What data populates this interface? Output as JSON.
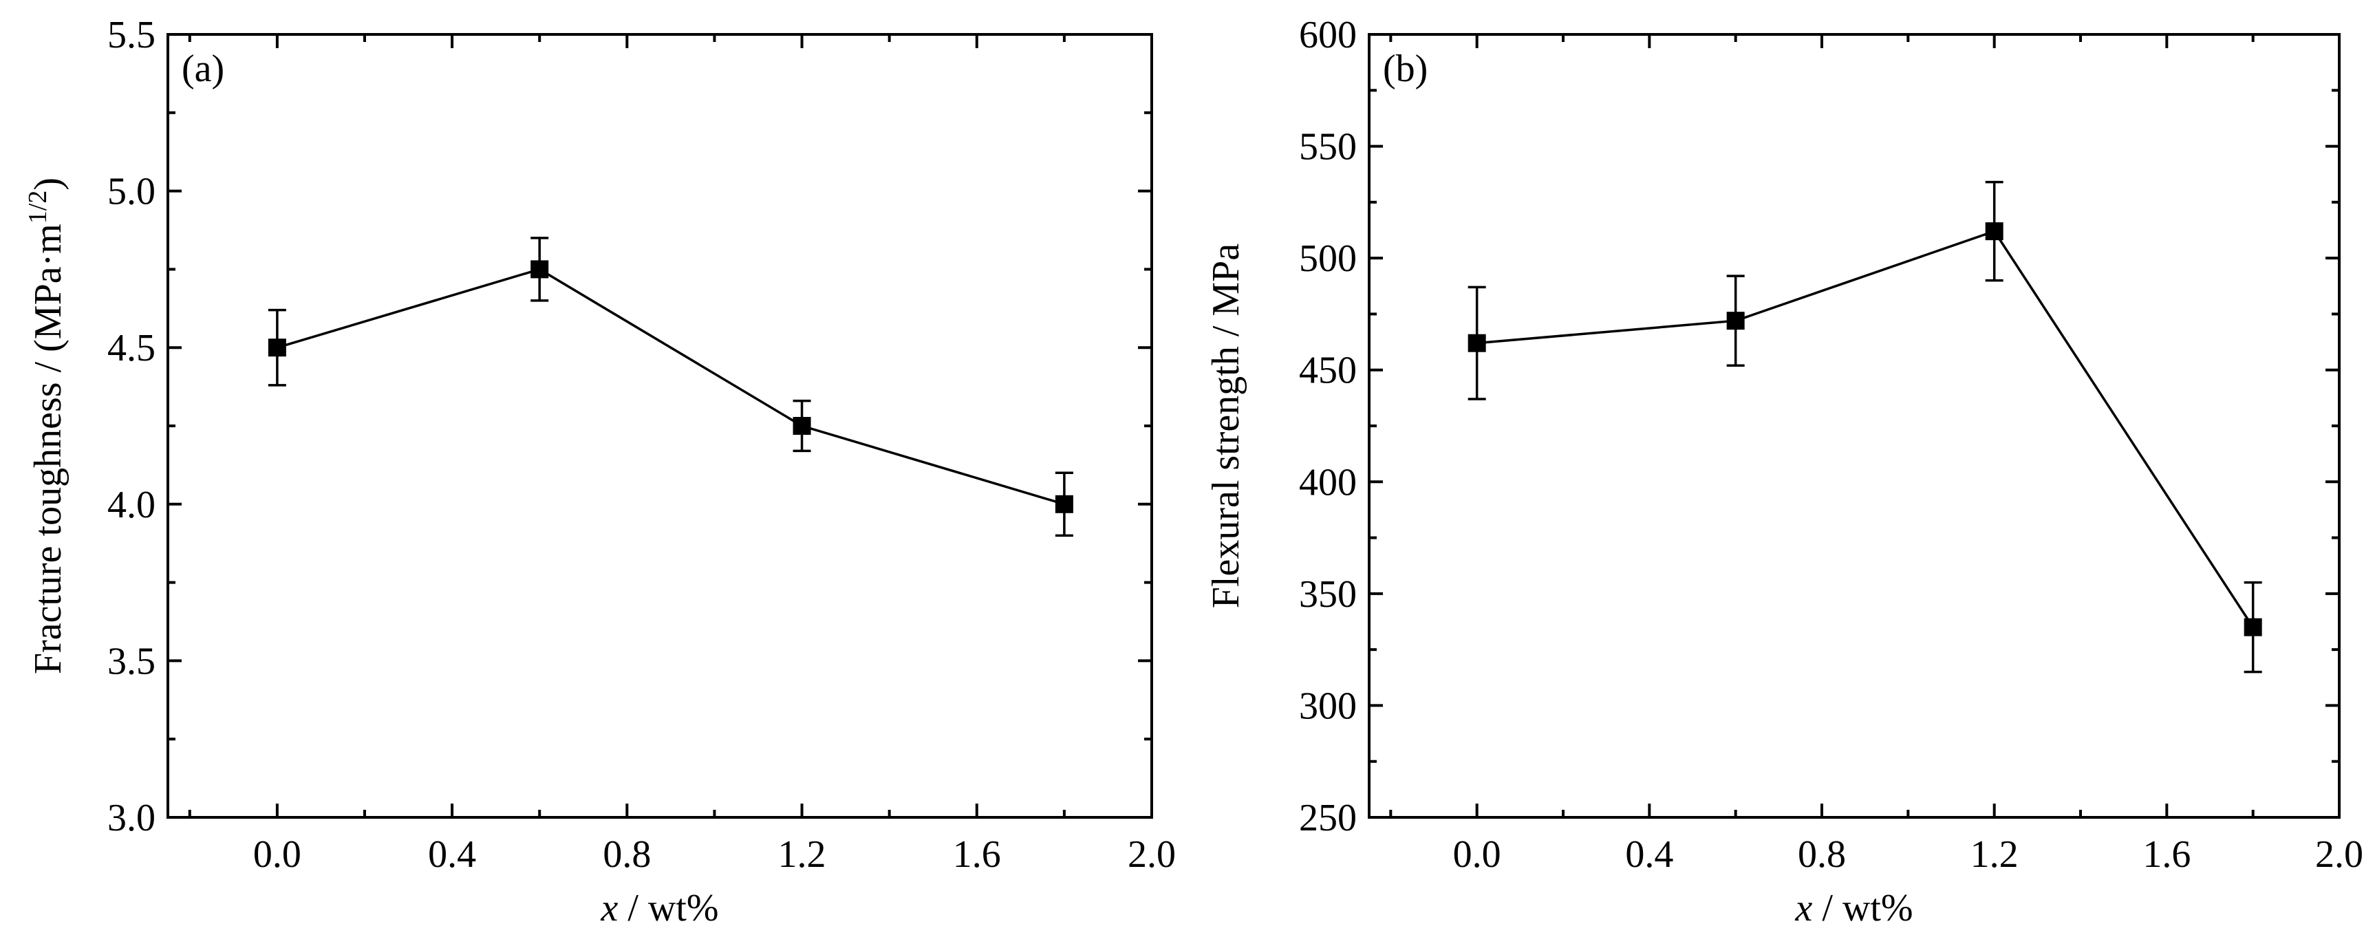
{
  "chart_data": [
    {
      "type": "line",
      "panel_label": "(a)",
      "xlabel_var": "x",
      "xlabel_rest": " / wt%",
      "ylabel_main": "Fracture toughness / (MPa·m",
      "ylabel_sup": "1/2",
      "ylabel_close": ")",
      "xlim": [
        -0.25,
        2.0
      ],
      "ylim": [
        3.0,
        5.5
      ],
      "xticks": [
        0.0,
        0.4,
        0.8,
        1.2,
        1.6,
        2.0
      ],
      "xtick_labels": [
        "0.0",
        "0.4",
        "0.8",
        "1.2",
        "1.6",
        "2.0"
      ],
      "yticks": [
        3.0,
        3.5,
        4.0,
        4.5,
        5.0,
        5.5
      ],
      "ytick_labels": [
        "3.0",
        "3.5",
        "4.0",
        "4.5",
        "5.0",
        "5.5"
      ],
      "x": [
        0.0,
        0.6,
        1.2,
        1.8
      ],
      "y": [
        4.5,
        4.75,
        4.25,
        4.0
      ],
      "err_low": [
        4.38,
        4.65,
        4.17,
        3.9
      ],
      "err_high": [
        4.62,
        4.85,
        4.33,
        4.1
      ],
      "grid": false
    },
    {
      "type": "line",
      "panel_label": "(b)",
      "xlabel_var": "x",
      "xlabel_rest": " / wt%",
      "ylabel_main": "Flexural strength / MPa",
      "ylabel_sup": "",
      "ylabel_close": "",
      "xlim": [
        -0.25,
        2.0
      ],
      "ylim": [
        250,
        600
      ],
      "xticks": [
        0.0,
        0.4,
        0.8,
        1.2,
        1.6,
        2.0
      ],
      "xtick_labels": [
        "0.0",
        "0.4",
        "0.8",
        "1.2",
        "1.6",
        "2.0"
      ],
      "yticks": [
        250,
        300,
        350,
        400,
        450,
        500,
        550,
        600
      ],
      "ytick_labels": [
        "250",
        "300",
        "350",
        "400",
        "450",
        "500",
        "550",
        "600"
      ],
      "x": [
        0.0,
        0.6,
        1.2,
        1.8
      ],
      "y": [
        462,
        472,
        512,
        335
      ],
      "err_low": [
        437,
        452,
        490,
        315
      ],
      "err_high": [
        487,
        492,
        534,
        355
      ],
      "grid": false
    }
  ]
}
